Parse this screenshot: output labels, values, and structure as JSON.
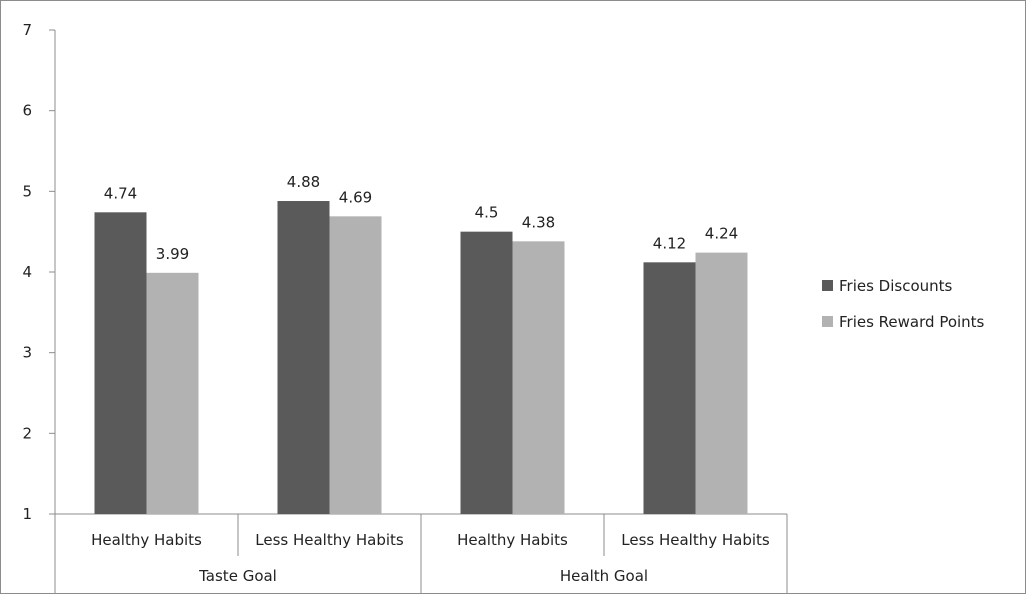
{
  "chart_data": {
    "type": "bar",
    "title": "",
    "xlabel": "",
    "ylabel": "",
    "ylim": [
      1,
      7
    ],
    "yticks": [
      1,
      2,
      3,
      4,
      5,
      6,
      7
    ],
    "grid": false,
    "legend_position": "right",
    "groups": [
      {
        "label": "Taste Goal",
        "categories": [
          "Healthy Habits",
          "Less Healthy Habits"
        ]
      },
      {
        "label": "Health Goal",
        "categories": [
          "Healthy Habits",
          "Less Healthy Habits"
        ]
      }
    ],
    "categories": [
      "Healthy Habits",
      "Less Healthy Habits",
      "Healthy Habits",
      "Less Healthy Habits"
    ],
    "series": [
      {
        "name": "Fries Discounts",
        "color": "#5a5a5a",
        "values": [
          4.74,
          4.88,
          4.5,
          4.12
        ],
        "labels": [
          "4.74",
          "4.88",
          "4.5",
          "4.12"
        ]
      },
      {
        "name": "Fries Reward Points",
        "color": "#b2b2b2",
        "values": [
          3.99,
          4.69,
          4.38,
          4.24
        ],
        "labels": [
          "3.99",
          "4.69",
          "4.38",
          "4.24"
        ]
      }
    ]
  }
}
